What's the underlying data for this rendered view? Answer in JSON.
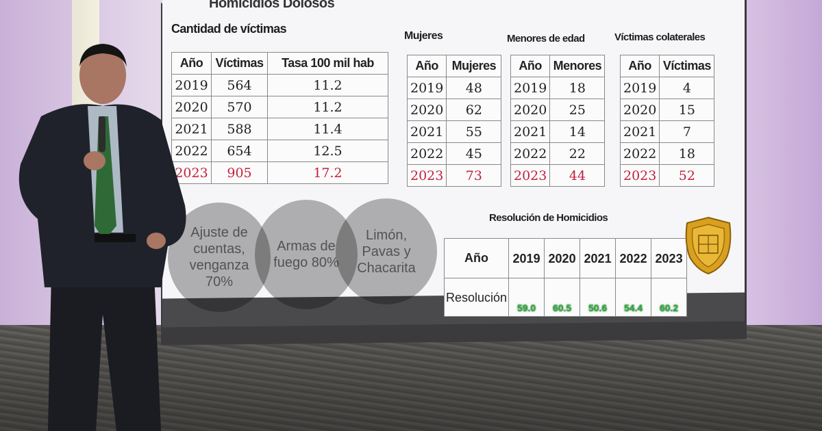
{
  "slide": {
    "title": "Homicidios Dolosos",
    "victims_heading": "Cantidad de víctimas",
    "women_heading": "Mujeres",
    "minors_heading": "Menores de edad",
    "collateral_heading": "Víctimas colaterales",
    "resolution_heading": "Resolución de Homicidios"
  },
  "victims_table": {
    "headers": [
      "Año",
      "Víctimas",
      "Tasa 100 mil hab"
    ],
    "rows": [
      [
        "2019",
        "564",
        "11.2"
      ],
      [
        "2020",
        "570",
        "11.2"
      ],
      [
        "2021",
        "588",
        "11.4"
      ],
      [
        "2022",
        "654",
        "12.5"
      ],
      [
        "2023",
        "905",
        "17.2"
      ]
    ]
  },
  "women_table": {
    "headers": [
      "Año",
      "Mujeres"
    ],
    "rows": [
      [
        "2019",
        "48"
      ],
      [
        "2020",
        "62"
      ],
      [
        "2021",
        "55"
      ],
      [
        "2022",
        "45"
      ],
      [
        "2023",
        "73"
      ]
    ]
  },
  "minors_table": {
    "headers": [
      "Año",
      "Menores"
    ],
    "rows": [
      [
        "2019",
        "18"
      ],
      [
        "2020",
        "25"
      ],
      [
        "2021",
        "14"
      ],
      [
        "2022",
        "22"
      ],
      [
        "2023",
        "44"
      ]
    ]
  },
  "collateral_table": {
    "headers": [
      "Año",
      "Víctimas"
    ],
    "rows": [
      [
        "2019",
        "4"
      ],
      [
        "2020",
        "15"
      ],
      [
        "2021",
        "7"
      ],
      [
        "2022",
        "18"
      ],
      [
        "2023",
        "52"
      ]
    ]
  },
  "circles": [
    {
      "text": "Ajuste de cuentas, venganza 70%"
    },
    {
      "text": "Armas de fuego 80%"
    },
    {
      "text": "Limón, Pavas y Chacarita"
    }
  ],
  "resolution_table": {
    "year_label": "Año",
    "resolution_label": "Resolución",
    "years": [
      "2019",
      "2020",
      "2021",
      "2022",
      "2023"
    ],
    "values": [
      "59.0",
      "60.5",
      "50.6",
      "54.4",
      "60.2"
    ]
  },
  "colors": {
    "highlight_row": "#c3203a",
    "resolution_values": "#27b43a",
    "stage_wall": "#e4d7ea"
  }
}
